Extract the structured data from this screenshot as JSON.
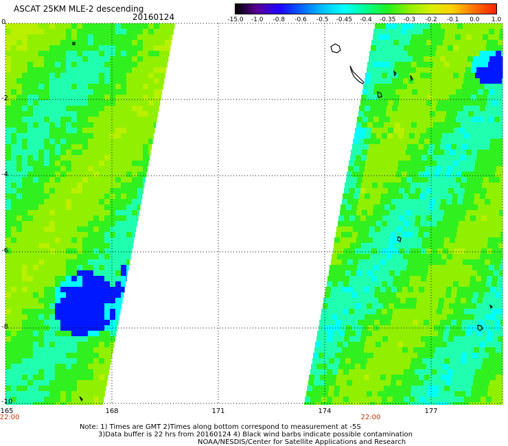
{
  "header": {
    "title": "ASCAT 25KM MLE-2 descending",
    "date": "20160124"
  },
  "colorbar": {
    "labels": [
      "-15.0",
      "-1.0",
      "-0.8",
      "-0.6",
      "-0.5",
      "-0.45",
      "-0.4",
      "-0.35",
      "-0.3",
      "-0.2",
      "-0.1",
      "0.0",
      "1.0"
    ],
    "colors": [
      "#000000",
      "#5a0096",
      "#2000ff",
      "#0060ff",
      "#00c0ff",
      "#00ffff",
      "#00ff90",
      "#20f020",
      "#90f000",
      "#d8f000",
      "#ffd000",
      "#ff7000",
      "#ff2000"
    ]
  },
  "axes": {
    "y_ticks": [
      "0",
      "-2",
      "-4",
      "-6",
      "-8",
      "-10"
    ],
    "x_ticks": [
      "165",
      "168",
      "171",
      "174",
      "177"
    ],
    "times": [
      "22:00",
      "22:00"
    ]
  },
  "footer": {
    "line1": "Note: 1) Times are GMT 2)Times along bottom correspond to measurement at -5S",
    "line2": "3)Data buffer is 22 hrs from 20160124 4) Black wind barbs indicate possible contamination",
    "line3": "NOAA/NESDIS/Center for Satellite Applications and Research"
  },
  "palette": {
    "deep_blue": "#0018ff",
    "cyan": "#00ffff",
    "aqua": "#20ffb0",
    "green": "#30f020",
    "lime": "#90f000",
    "yellow_green": "#b8f000"
  }
}
